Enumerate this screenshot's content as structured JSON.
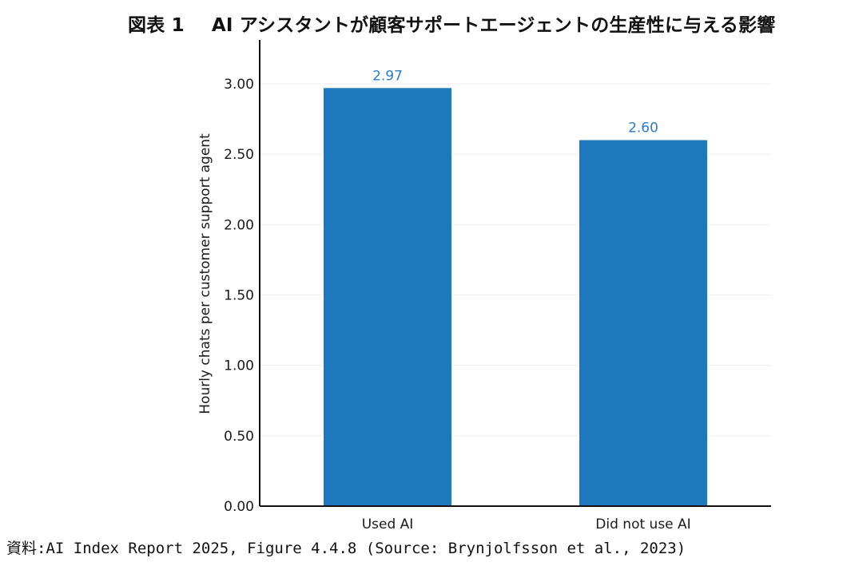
{
  "figure": {
    "number": "図表 1",
    "title": "AI アシスタントが顧客サポートエージェントの生産性に与える影響",
    "source": "資料:AI Index Report 2025, Figure 4.4.8 (Source: Brynjolfsson et al., 2023)"
  },
  "chart_data": {
    "type": "bar",
    "categories": [
      "Used AI",
      "Did not use AI"
    ],
    "values": [
      2.97,
      2.6
    ],
    "data_labels": [
      "2.97",
      "2.60"
    ],
    "ylabel": "Hourly chats per customer support agent",
    "xlabel": "",
    "ylim": [
      0,
      3.3
    ],
    "yticks": [
      0,
      0.5,
      1.0,
      1.5,
      2.0,
      2.5,
      3.0
    ],
    "ytick_labels": [
      "0.00",
      "0.50",
      "1.00",
      "1.50",
      "2.00",
      "2.50",
      "3.00"
    ],
    "grid": true,
    "colors": {
      "bar": "#1f77bc",
      "label": "#2e7cc4",
      "grid": "#eeeeee",
      "axis": "#111111"
    }
  }
}
